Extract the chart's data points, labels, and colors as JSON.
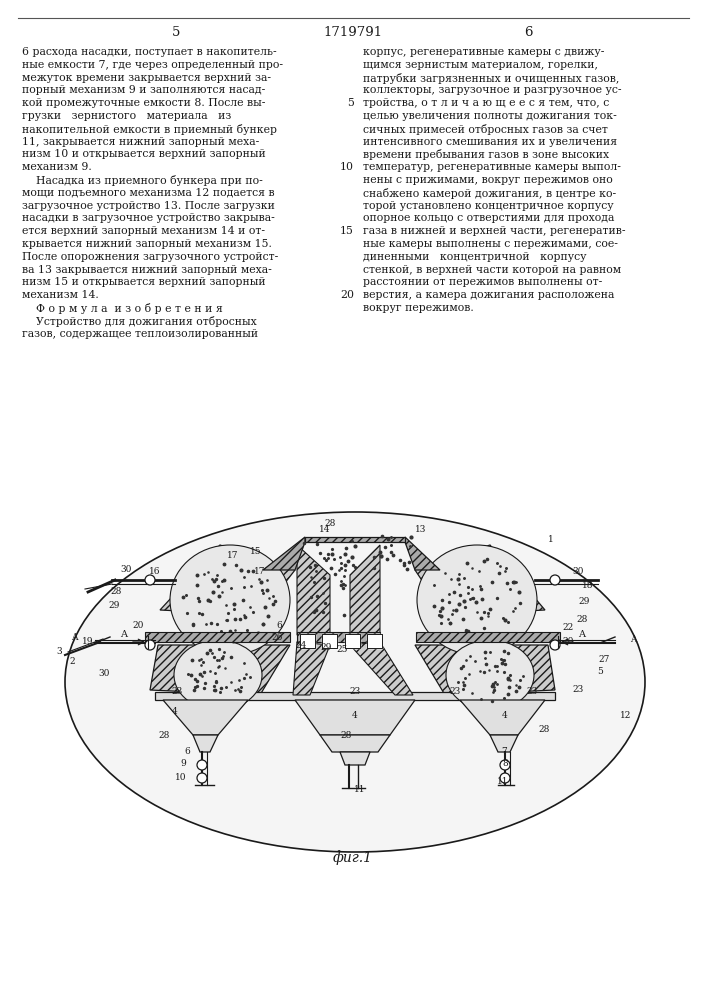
{
  "col_left_num": "5",
  "col_center_num": "1719791",
  "col_right_num": "6",
  "fig_label": "фиг.1",
  "background_color": "#ffffff",
  "text_color": "#1a1a1a",
  "left_lines": [
    "6 расхода насадки, поступает в накопитель-",
    "ные емкости 7, где через определенный про-",
    "межуток времени закрывается верхний за-",
    "порный механизм 9 и заполняются насад-",
    "кой промежуточные емкости 8. После вы-",
    "грузки   зернистого   материала   из",
    "накопительной емкости в приемный бункер",
    "11, закрывается нижний запорный меха-",
    "низм 10 и открывается верхний запорный",
    "механизм 9.",
    "    Насадка из приемного бункера при по-",
    "мощи подъемного механизма 12 подается в",
    "загрузочное устройство 13. После загрузки",
    "насадки в загрузочное устройство закрыва-",
    "ется верхний запорный механизм 14 и от-",
    "крывается нижний запорный механизм 15.",
    "После опорожнения загрузочного устройст-",
    "ва 13 закрывается нижний запорный меха-",
    "низм 15 и открывается верхний запорный",
    "механизм 14.",
    "    Ф о р м у л а  и з о б р е т е н и я",
    "    Устройство для дожигания отбросных",
    "газов, содержащее теплоизолированный"
  ],
  "right_lines": [
    "корпус, регенеративные камеры с движу-",
    "щимся зернистым материалом, горелки,",
    "патрубки загрязненных и очищенных газов,",
    "коллекторы, загрузочное и разгрузочное ус-",
    "тройства, о т л и ч а ю щ е е с я тем, что, с",
    "целью увеличения полноты дожигания ток-",
    "сичных примесей отбросных газов за счет",
    "интенсивного смешивания их и увеличения",
    "времени пребывания газов в зоне высоких",
    "температур, регенеративные камеры выпол-",
    "нены с прижимами, вокруг пережимов оно",
    "снабжено камерой дожигания, в центре ко-",
    "торой установлено концентричное корпусу",
    "опорное кольцо с отверстиями для прохода",
    "газа в нижней и верхней части, регенератив-",
    "ные камеры выполнены с пережимами, сое-",
    "диненными   концентричной   корпусу",
    "стенкой, в верхней части которой на равном",
    "расстоянии от пережимов выполнены от-",
    "верстия, а камера дожигания расположена",
    "вокруг пережимов."
  ]
}
